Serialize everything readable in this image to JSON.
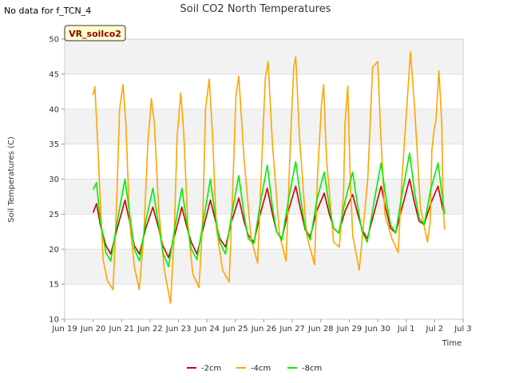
{
  "nodata_text": "No data for f_TCN_4",
  "chart_data": {
    "type": "line",
    "title": "Soil CO2 North Temperatures",
    "xlabel": "Time",
    "ylabel": "Soil Temperatures (C)",
    "site_label": "VR_soilco2",
    "ylim": [
      10,
      50
    ],
    "yticks": [
      10,
      15,
      20,
      25,
      30,
      35,
      40,
      45,
      50
    ],
    "xlim": [
      0,
      14
    ],
    "xticks": [
      {
        "x": 0,
        "label": "Jun 19"
      },
      {
        "x": 1,
        "label": "Jun 20"
      },
      {
        "x": 2,
        "label": "Jun 21"
      },
      {
        "x": 3,
        "label": "Jun 22"
      },
      {
        "x": 4,
        "label": "Jun 23"
      },
      {
        "x": 5,
        "label": "Jun 24"
      },
      {
        "x": 6,
        "label": "Jun 25"
      },
      {
        "x": 7,
        "label": "Jun 26"
      },
      {
        "x": 8,
        "label": "Jun 27"
      },
      {
        "x": 9,
        "label": "Jun 28"
      },
      {
        "x": 10,
        "label": "Jun 29"
      },
      {
        "x": 11,
        "label": "Jun 30"
      },
      {
        "x": 12,
        "label": "Jul 1"
      },
      {
        "x": 13,
        "label": "Jul 2"
      },
      {
        "x": 14,
        "label": "Jul 3"
      }
    ],
    "x_unit_note": "",
    "grid": "horizontal bands",
    "legend_position": "bottom",
    "series": [
      {
        "name": "-2cm",
        "color": "#cc0000",
        "x": [
          1.0,
          1.12,
          1.25,
          1.45,
          1.62,
          1.85,
          2.12,
          2.3,
          2.45,
          2.63,
          2.85,
          3.1,
          3.3,
          3.45,
          3.65,
          3.87,
          4.12,
          4.3,
          4.45,
          4.65,
          4.87,
          5.12,
          5.3,
          5.45,
          5.65,
          5.87,
          6.12,
          6.3,
          6.45,
          6.65,
          6.87,
          7.12,
          7.3,
          7.45,
          7.63,
          7.86,
          8.12,
          8.3,
          8.45,
          8.63,
          8.86,
          9.12,
          9.3,
          9.45,
          9.63,
          9.86,
          10.12,
          10.3,
          10.45,
          10.63,
          10.86,
          11.12,
          11.3,
          11.45,
          11.63,
          11.86,
          12.12,
          12.3,
          12.45,
          12.63,
          12.86,
          13.12,
          13.3
        ],
        "y": [
          25.2,
          26.5,
          23.5,
          20.5,
          19.3,
          23.0,
          27.0,
          23.5,
          20.5,
          19.3,
          23.0,
          26.0,
          23.0,
          20.5,
          18.8,
          22.0,
          26.0,
          23.0,
          21.0,
          19.3,
          23.0,
          27.0,
          24.0,
          21.5,
          20.3,
          24.0,
          27.3,
          24.0,
          22.0,
          21.0,
          25.0,
          28.7,
          25.0,
          22.5,
          21.5,
          25.5,
          29.0,
          25.5,
          22.8,
          21.8,
          25.5,
          28.0,
          25.0,
          23.0,
          22.3,
          25.5,
          27.8,
          25.0,
          22.8,
          21.5,
          25.0,
          29.0,
          25.5,
          23.0,
          22.3,
          26.0,
          30.0,
          26.5,
          24.0,
          23.5,
          26.5,
          29.0,
          25.5
        ]
      },
      {
        "name": "-4cm",
        "color": "#ffa500",
        "x": [
          1.0,
          1.06,
          1.15,
          1.25,
          1.35,
          1.5,
          1.7,
          1.82,
          1.93,
          2.05,
          2.15,
          2.28,
          2.45,
          2.62,
          2.78,
          2.92,
          3.05,
          3.15,
          3.3,
          3.5,
          3.72,
          3.85,
          3.95,
          4.08,
          4.18,
          4.32,
          4.5,
          4.72,
          4.85,
          4.95,
          5.08,
          5.2,
          5.33,
          5.55,
          5.78,
          5.9,
          6.02,
          6.12,
          6.3,
          6.55,
          6.78,
          6.9,
          7.05,
          7.15,
          7.3,
          7.55,
          7.78,
          7.92,
          8.05,
          8.12,
          8.25,
          8.5,
          8.78,
          8.88,
          9.02,
          9.1,
          9.2,
          9.45,
          9.65,
          9.8,
          9.85,
          9.95,
          10.02,
          10.12,
          10.35,
          10.65,
          10.82,
          11.0,
          11.1,
          11.25,
          11.5,
          11.72,
          11.85,
          12.05,
          12.15,
          12.3,
          12.5,
          12.75,
          12.85,
          12.9,
          12.98,
          13.05,
          13.15,
          13.25,
          13.3,
          13.35
        ],
        "y": [
          42.0,
          43.2,
          36.0,
          27.0,
          18.5,
          15.5,
          14.2,
          26.0,
          40.0,
          43.5,
          38.0,
          24.0,
          17.5,
          14.2,
          22.0,
          35.0,
          41.5,
          38.0,
          26.0,
          17.0,
          12.3,
          22.0,
          36.0,
          42.3,
          37.0,
          24.0,
          16.5,
          14.5,
          24.0,
          40.0,
          44.3,
          36.0,
          23.0,
          17.0,
          15.3,
          28.0,
          42.0,
          44.7,
          33.0,
          21.5,
          18.0,
          30.0,
          44.5,
          46.8,
          35.0,
          22.0,
          18.3,
          34.0,
          46.0,
          47.5,
          36.0,
          22.0,
          17.8,
          30.0,
          40.5,
          43.5,
          33.0,
          21.0,
          20.3,
          28.0,
          38.0,
          43.3,
          32.0,
          22.0,
          17.0,
          30.0,
          46.0,
          46.8,
          37.0,
          25.0,
          21.5,
          19.5,
          30.0,
          42.0,
          48.2,
          40.0,
          26.0,
          21.0,
          24.0,
          34.0,
          37.0,
          38.5,
          45.5,
          38.0,
          26.0,
          22.8
        ]
      },
      {
        "name": "-8cm",
        "color": "#00ee00",
        "x": [
          1.0,
          1.12,
          1.25,
          1.45,
          1.62,
          1.85,
          2.12,
          2.3,
          2.45,
          2.63,
          2.85,
          3.1,
          3.3,
          3.45,
          3.65,
          3.87,
          4.12,
          4.3,
          4.45,
          4.65,
          4.87,
          5.12,
          5.3,
          5.45,
          5.65,
          5.87,
          6.12,
          6.3,
          6.45,
          6.65,
          6.87,
          7.12,
          7.3,
          7.45,
          7.63,
          7.86,
          8.12,
          8.3,
          8.45,
          8.63,
          8.86,
          9.12,
          9.3,
          9.45,
          9.63,
          9.86,
          10.12,
          10.3,
          10.45,
          10.63,
          10.86,
          11.12,
          11.3,
          11.45,
          11.63,
          11.86,
          12.12,
          12.3,
          12.45,
          12.63,
          12.86,
          13.12,
          13.35
        ],
        "y": [
          28.5,
          29.5,
          24.0,
          19.5,
          18.3,
          24.0,
          30.0,
          24.5,
          20.0,
          18.3,
          24.0,
          28.7,
          23.5,
          19.5,
          17.5,
          23.0,
          28.7,
          23.5,
          20.0,
          18.5,
          24.0,
          30.0,
          24.5,
          21.0,
          19.3,
          25.0,
          30.5,
          25.0,
          21.5,
          20.8,
          26.5,
          32.0,
          26.0,
          22.5,
          21.3,
          27.0,
          32.5,
          27.0,
          23.0,
          21.3,
          27.0,
          31.0,
          26.0,
          23.0,
          22.3,
          27.0,
          31.0,
          26.0,
          22.5,
          21.0,
          26.5,
          32.3,
          27.0,
          23.5,
          22.3,
          28.0,
          33.7,
          28.0,
          24.5,
          23.5,
          28.5,
          32.3,
          25.0
        ]
      }
    ]
  }
}
